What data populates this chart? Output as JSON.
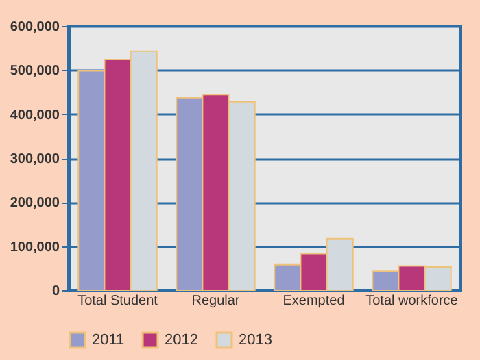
{
  "chart_data": {
    "type": "bar",
    "categories": [
      "Total Student",
      "Regular",
      "Exempted",
      "Total workforce"
    ],
    "series": [
      {
        "name": "2011",
        "color": "#959bcb",
        "values": [
          498000,
          437000,
          58000,
          43000
        ]
      },
      {
        "name": "2012",
        "color": "#b7377a",
        "values": [
          524000,
          444000,
          83000,
          55000
        ]
      },
      {
        "name": "2013",
        "color": "#d2dae0",
        "values": [
          543000,
          428000,
          117000,
          53000
        ]
      }
    ],
    "ylim": [
      0,
      600000
    ],
    "yticks": [
      0,
      {
        "value": 100000,
        "label": "100,000"
      },
      {
        "value": 200000,
        "label": "200,000"
      },
      {
        "value": 300000,
        "label": "300,000"
      },
      {
        "value": 400000,
        "label": "400,000"
      },
      {
        "value": 500000,
        "label": "500,000"
      },
      {
        "value": 600000,
        "label": "600,000"
      }
    ],
    "grid": "y",
    "legend": "bottom"
  }
}
